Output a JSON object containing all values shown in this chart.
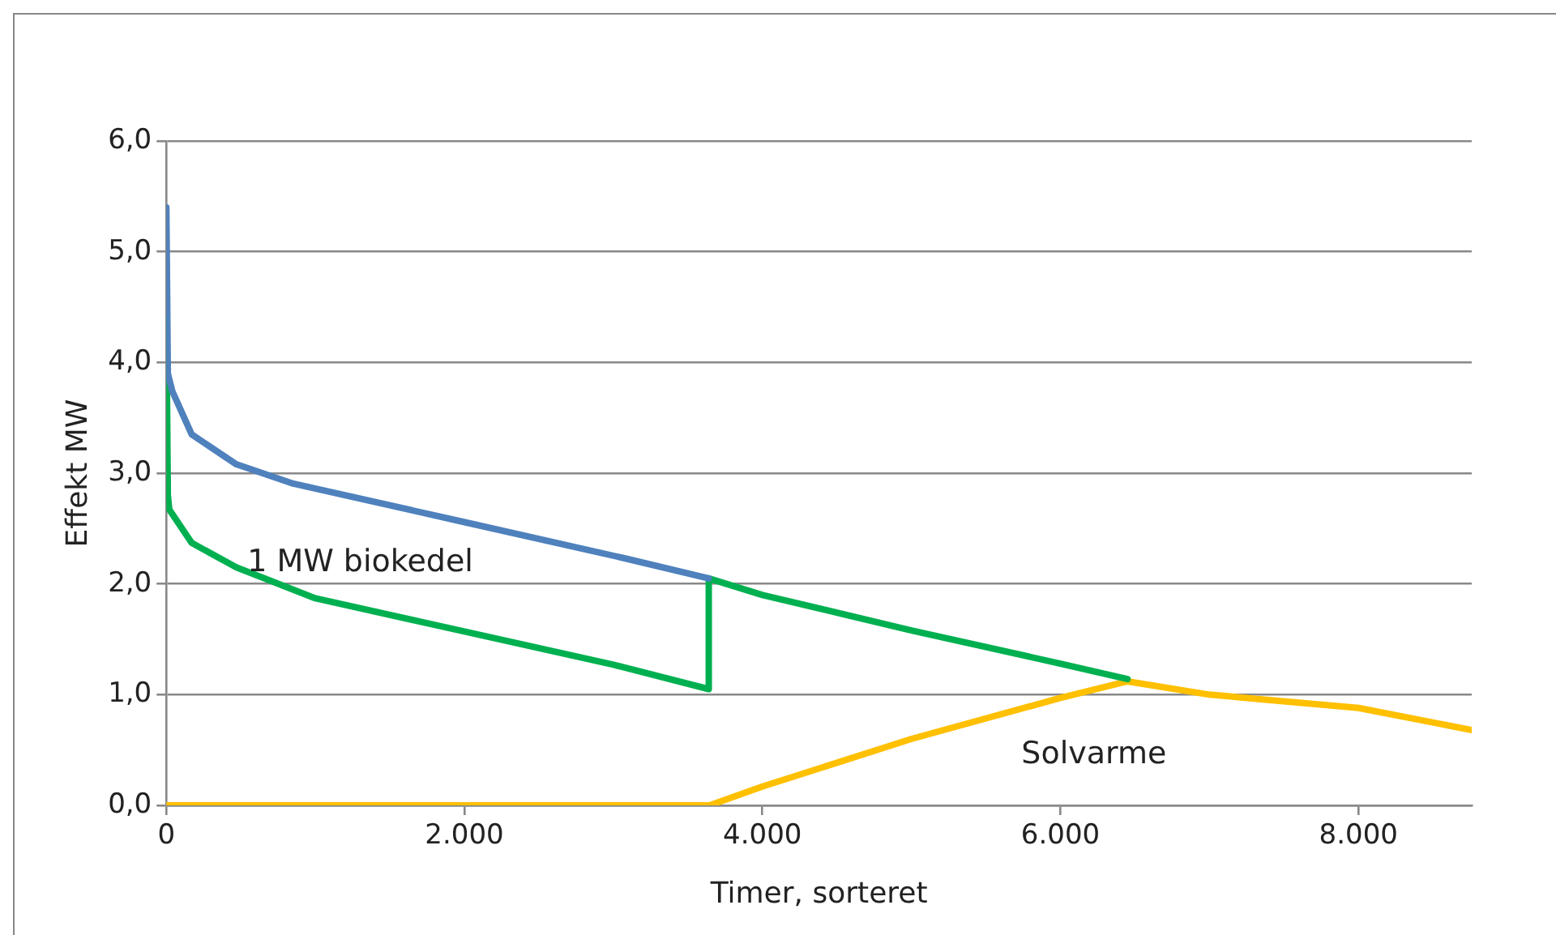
{
  "chart_data": {
    "type": "line",
    "xlabel": "Timer, sorteret",
    "ylabel": "Effekt MW",
    "xlim": [
      0,
      8760
    ],
    "xticks": [
      0,
      {
        "value": 2000,
        "label": "2.000"
      },
      {
        "value": 4000,
        "label": "4.000"
      },
      {
        "value": 6000,
        "label": "6.000"
      },
      {
        "value": 8000,
        "label": "8.000"
      }
    ],
    "ylim": [
      0,
      6
    ],
    "yticks": [
      {
        "value": 0,
        "label": "0,0"
      },
      {
        "value": 1,
        "label": "1,0"
      },
      {
        "value": 2,
        "label": "2,0"
      },
      {
        "value": 3,
        "label": "3,0"
      },
      {
        "value": 4,
        "label": "4,0"
      },
      {
        "value": 5,
        "label": "5,0"
      },
      {
        "value": 6,
        "label": "6,0"
      }
    ],
    "grid": "y",
    "legend": false,
    "marker": "none",
    "line_style": "solid",
    "annotations": [
      "1 MW biokedel",
      "Solvarme"
    ],
    "series": [
      {
        "color": "#4f81bd",
        "x": [
          0,
          10,
          40,
          170,
          470,
          840,
          1960,
          3080,
          3640
        ],
        "values": [
          5.4,
          3.9,
          3.74,
          3.35,
          3.08,
          2.91,
          2.57,
          2.23,
          2.05
        ]
      },
      {
        "color": "#00b050",
        "x": [
          0,
          10,
          20,
          170,
          470,
          1000,
          2000,
          3000,
          3640,
          3640,
          4000,
          5000,
          6000,
          6450
        ],
        "values": [
          4.4,
          2.8,
          2.67,
          2.37,
          2.15,
          1.87,
          1.57,
          1.27,
          1.05,
          2.05,
          1.9,
          1.58,
          1.28,
          1.14
        ]
      },
      {
        "color": "#ffc000",
        "x": [
          0,
          3645,
          4000,
          5000,
          6000,
          6450,
          7000,
          8000,
          8760
        ],
        "values": [
          0,
          0,
          0.17,
          0.6,
          0.97,
          1.12,
          1.0,
          0.88,
          0.68
        ]
      }
    ]
  }
}
